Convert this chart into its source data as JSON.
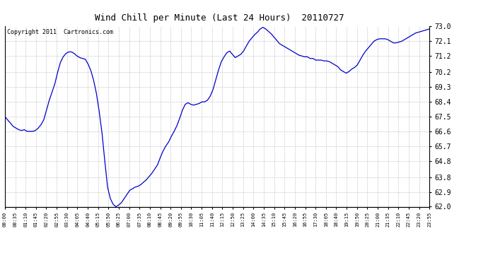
{
  "title": "Wind Chill per Minute (Last 24 Hours)  20110727",
  "copyright": "Copyright 2011  Cartronics.com",
  "line_color": "#0000CC",
  "background_color": "#ffffff",
  "plot_bg_color": "#ffffff",
  "grid_color": "#bbbbbb",
  "ylim": [
    62.0,
    73.0
  ],
  "yticks": [
    62.0,
    62.9,
    63.8,
    64.8,
    65.7,
    66.6,
    67.5,
    68.4,
    69.3,
    70.2,
    71.2,
    72.1,
    73.0
  ],
  "xtick_labels": [
    "00:00",
    "00:35",
    "01:10",
    "01:45",
    "02:20",
    "02:55",
    "03:30",
    "04:05",
    "04:40",
    "05:15",
    "05:50",
    "06:25",
    "07:00",
    "07:35",
    "08:10",
    "08:45",
    "09:20",
    "09:55",
    "10:30",
    "11:05",
    "11:40",
    "12:15",
    "12:50",
    "13:25",
    "14:00",
    "14:35",
    "15:10",
    "15:45",
    "16:20",
    "16:55",
    "17:30",
    "18:05",
    "18:40",
    "19:15",
    "19:50",
    "20:25",
    "21:00",
    "21:35",
    "22:10",
    "22:45",
    "23:20",
    "23:55"
  ],
  "data_y": [
    67.5,
    67.3,
    67.1,
    66.9,
    66.8,
    66.7,
    66.65,
    66.7,
    66.6,
    66.6,
    66.6,
    66.65,
    66.8,
    67.0,
    67.3,
    67.9,
    68.5,
    69.0,
    69.5,
    70.2,
    70.8,
    71.15,
    71.35,
    71.45,
    71.45,
    71.35,
    71.2,
    71.1,
    71.05,
    71.0,
    70.7,
    70.3,
    69.7,
    68.9,
    67.8,
    66.5,
    64.8,
    63.2,
    62.5,
    62.15,
    62.0,
    62.1,
    62.25,
    62.5,
    62.75,
    63.0,
    63.1,
    63.2,
    63.25,
    63.35,
    63.5,
    63.65,
    63.85,
    64.05,
    64.3,
    64.55,
    65.0,
    65.4,
    65.7,
    65.95,
    66.3,
    66.6,
    66.95,
    67.4,
    67.9,
    68.25,
    68.35,
    68.25,
    68.2,
    68.25,
    68.3,
    68.4,
    68.4,
    68.5,
    68.75,
    69.15,
    69.75,
    70.35,
    70.85,
    71.15,
    71.4,
    71.5,
    71.3,
    71.1,
    71.2,
    71.3,
    71.5,
    71.8,
    72.1,
    72.3,
    72.5,
    72.65,
    72.85,
    72.95,
    72.85,
    72.7,
    72.55,
    72.35,
    72.15,
    71.95,
    71.85,
    71.75,
    71.65,
    71.55,
    71.45,
    71.35,
    71.25,
    71.2,
    71.15,
    71.15,
    71.05,
    71.05,
    70.95,
    70.95,
    70.95,
    70.9,
    70.9,
    70.85,
    70.75,
    70.65,
    70.55,
    70.35,
    70.25,
    70.15,
    70.25,
    70.4,
    70.5,
    70.65,
    70.95,
    71.25,
    71.5,
    71.7,
    71.9,
    72.1,
    72.2,
    72.25,
    72.25,
    72.25,
    72.2,
    72.1,
    72.0,
    72.0,
    72.05,
    72.1,
    72.2,
    72.3,
    72.4,
    72.5,
    72.6,
    72.65,
    72.7,
    72.75,
    72.8,
    72.85
  ],
  "title_fontsize": 9,
  "copyright_fontsize": 6,
  "ytick_fontsize": 7,
  "xtick_fontsize": 5
}
